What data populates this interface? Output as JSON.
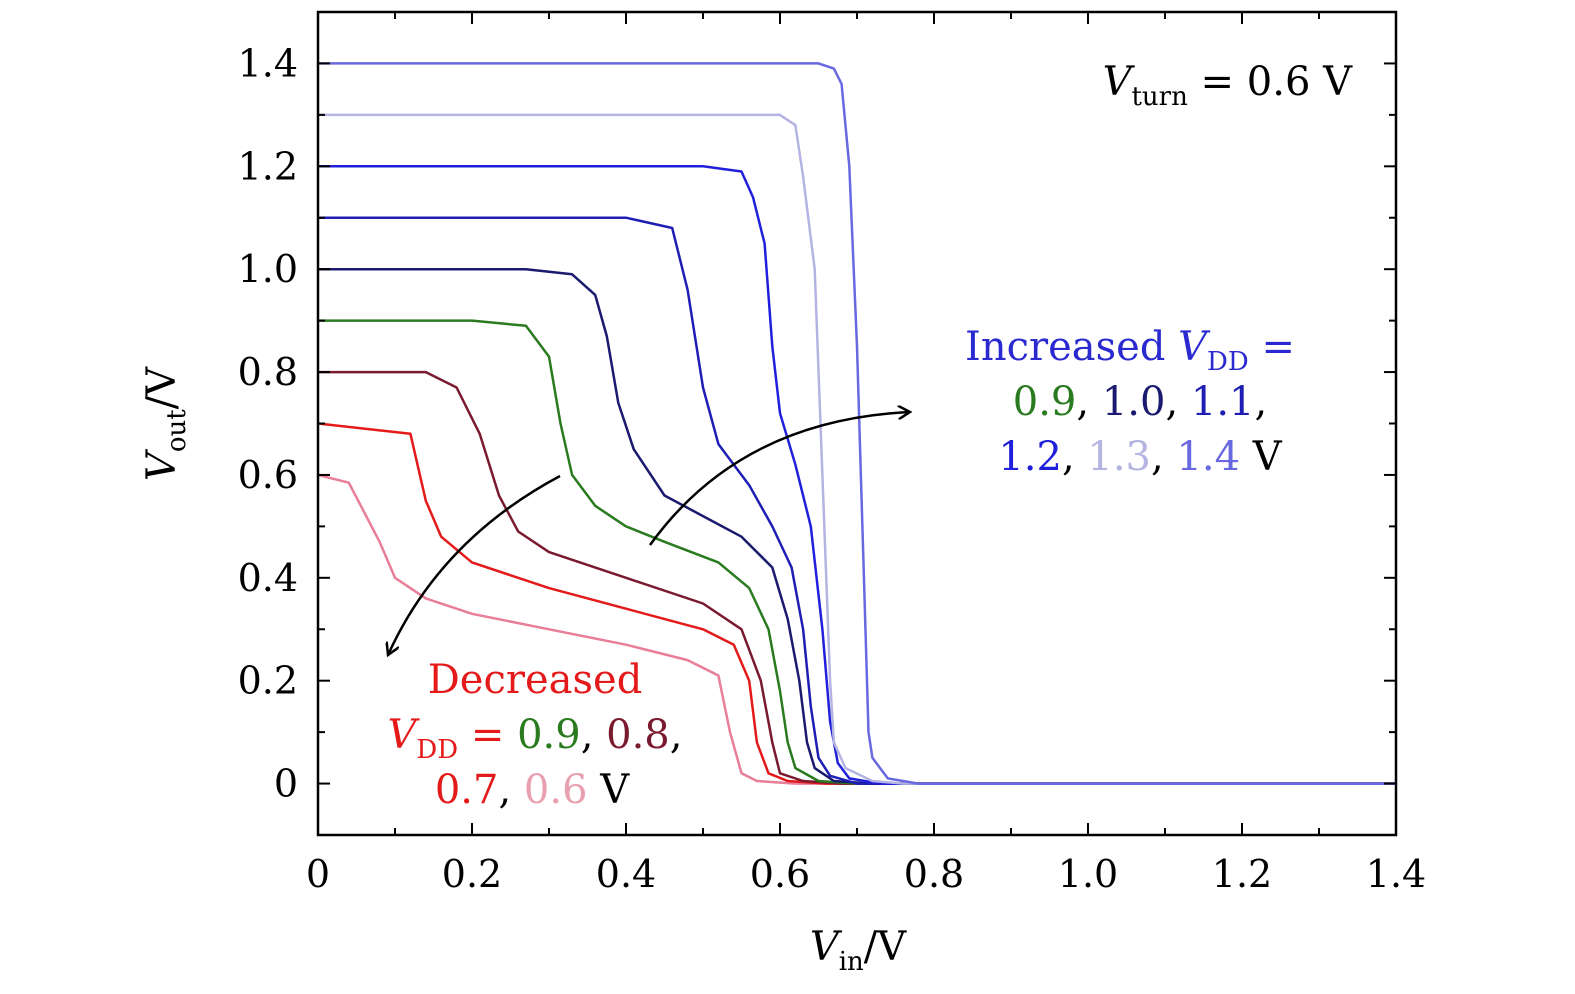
{
  "chart_data": {
    "type": "line",
    "xlim": [
      0,
      1.4
    ],
    "ylim": [
      -0.1,
      1.5
    ],
    "xticks": [
      "0",
      "0.2",
      "0.4",
      "0.6",
      "0.8",
      "1.0",
      "1.2",
      "1.4"
    ],
    "xtick_values": [
      0,
      0.2,
      0.4,
      0.6,
      0.8,
      1.0,
      1.2,
      1.4
    ],
    "yticks": [
      "0",
      "0.2",
      "0.4",
      "0.6",
      "0.8",
      "1.0",
      "1.2",
      "1.4"
    ],
    "ytick_values": [
      0,
      0.2,
      0.4,
      0.6,
      0.8,
      1.0,
      1.2,
      1.4
    ],
    "xlabel": {
      "var": "V",
      "sub": "in",
      "rest": "/V"
    },
    "ylabel": {
      "var": "V",
      "sub": "out",
      "rest": "/V"
    },
    "grid": false,
    "series": [
      {
        "color": "#e87e98",
        "points": [
          [
            0,
            0.6
          ],
          [
            0.04,
            0.585
          ],
          [
            0.08,
            0.47
          ],
          [
            0.1,
            0.4
          ],
          [
            0.14,
            0.36
          ],
          [
            0.2,
            0.33
          ],
          [
            0.3,
            0.3
          ],
          [
            0.4,
            0.27
          ],
          [
            0.48,
            0.24
          ],
          [
            0.52,
            0.21
          ],
          [
            0.535,
            0.1
          ],
          [
            0.55,
            0.02
          ],
          [
            0.57,
            0.005
          ],
          [
            0.62,
            0
          ],
          [
            1.4,
            0
          ]
        ]
      },
      {
        "color": "#e41a1a",
        "points": [
          [
            0,
            0.7
          ],
          [
            0.12,
            0.68
          ],
          [
            0.14,
            0.55
          ],
          [
            0.16,
            0.48
          ],
          [
            0.2,
            0.43
          ],
          [
            0.3,
            0.38
          ],
          [
            0.4,
            0.34
          ],
          [
            0.5,
            0.3
          ],
          [
            0.54,
            0.27
          ],
          [
            0.56,
            0.2
          ],
          [
            0.57,
            0.08
          ],
          [
            0.585,
            0.02
          ],
          [
            0.61,
            0.005
          ],
          [
            0.66,
            0
          ],
          [
            1.4,
            0
          ]
        ]
      },
      {
        "color": "#7a1a2e",
        "points": [
          [
            0,
            0.8
          ],
          [
            0.14,
            0.8
          ],
          [
            0.18,
            0.77
          ],
          [
            0.21,
            0.68
          ],
          [
            0.235,
            0.56
          ],
          [
            0.26,
            0.49
          ],
          [
            0.3,
            0.45
          ],
          [
            0.4,
            0.4
          ],
          [
            0.5,
            0.35
          ],
          [
            0.55,
            0.3
          ],
          [
            0.575,
            0.2
          ],
          [
            0.59,
            0.08
          ],
          [
            0.6,
            0.02
          ],
          [
            0.63,
            0.005
          ],
          [
            0.68,
            0
          ],
          [
            1.4,
            0
          ]
        ]
      },
      {
        "color": "#2a7a20",
        "points": [
          [
            0,
            0.9
          ],
          [
            0.2,
            0.9
          ],
          [
            0.27,
            0.89
          ],
          [
            0.3,
            0.83
          ],
          [
            0.315,
            0.7
          ],
          [
            0.33,
            0.6
          ],
          [
            0.36,
            0.54
          ],
          [
            0.4,
            0.5
          ],
          [
            0.45,
            0.47
          ],
          [
            0.52,
            0.43
          ],
          [
            0.56,
            0.38
          ],
          [
            0.585,
            0.3
          ],
          [
            0.6,
            0.18
          ],
          [
            0.61,
            0.08
          ],
          [
            0.62,
            0.03
          ],
          [
            0.65,
            0.005
          ],
          [
            0.7,
            0
          ],
          [
            1.4,
            0
          ]
        ]
      },
      {
        "color": "#1a1a6e",
        "points": [
          [
            0,
            1.0
          ],
          [
            0.27,
            1.0
          ],
          [
            0.33,
            0.99
          ],
          [
            0.36,
            0.95
          ],
          [
            0.375,
            0.87
          ],
          [
            0.39,
            0.74
          ],
          [
            0.41,
            0.65
          ],
          [
            0.45,
            0.56
          ],
          [
            0.5,
            0.52
          ],
          [
            0.55,
            0.48
          ],
          [
            0.59,
            0.42
          ],
          [
            0.61,
            0.32
          ],
          [
            0.625,
            0.2
          ],
          [
            0.635,
            0.08
          ],
          [
            0.645,
            0.03
          ],
          [
            0.67,
            0.005
          ],
          [
            0.72,
            0
          ],
          [
            1.4,
            0
          ]
        ]
      },
      {
        "color": "#1e1eb4",
        "points": [
          [
            0,
            1.1
          ],
          [
            0.3,
            1.1
          ],
          [
            0.4,
            1.1
          ],
          [
            0.46,
            1.08
          ],
          [
            0.48,
            0.96
          ],
          [
            0.5,
            0.77
          ],
          [
            0.52,
            0.66
          ],
          [
            0.56,
            0.58
          ],
          [
            0.59,
            0.5
          ],
          [
            0.615,
            0.42
          ],
          [
            0.63,
            0.3
          ],
          [
            0.64,
            0.15
          ],
          [
            0.65,
            0.05
          ],
          [
            0.665,
            0.015
          ],
          [
            0.7,
            0
          ],
          [
            1.4,
            0
          ]
        ]
      },
      {
        "color": "#2020dc",
        "points": [
          [
            0,
            1.2
          ],
          [
            0.4,
            1.2
          ],
          [
            0.5,
            1.2
          ],
          [
            0.55,
            1.19
          ],
          [
            0.565,
            1.14
          ],
          [
            0.58,
            1.05
          ],
          [
            0.59,
            0.85
          ],
          [
            0.6,
            0.72
          ],
          [
            0.62,
            0.62
          ],
          [
            0.64,
            0.5
          ],
          [
            0.655,
            0.3
          ],
          [
            0.665,
            0.12
          ],
          [
            0.675,
            0.04
          ],
          [
            0.69,
            0.01
          ],
          [
            0.73,
            0
          ],
          [
            1.4,
            0
          ]
        ]
      },
      {
        "color": "#b4b4e2",
        "points": [
          [
            0,
            1.3
          ],
          [
            0.5,
            1.3
          ],
          [
            0.6,
            1.3
          ],
          [
            0.62,
            1.28
          ],
          [
            0.63,
            1.18
          ],
          [
            0.645,
            1.0
          ],
          [
            0.655,
            0.6
          ],
          [
            0.665,
            0.2
          ],
          [
            0.67,
            0.08
          ],
          [
            0.685,
            0.03
          ],
          [
            0.72,
            0.005
          ],
          [
            0.76,
            0
          ],
          [
            1.4,
            0
          ]
        ]
      },
      {
        "color": "#6868e0",
        "points": [
          [
            0,
            1.4
          ],
          [
            0.55,
            1.4
          ],
          [
            0.65,
            1.4
          ],
          [
            0.67,
            1.39
          ],
          [
            0.68,
            1.36
          ],
          [
            0.69,
            1.2
          ],
          [
            0.7,
            0.85
          ],
          [
            0.71,
            0.35
          ],
          [
            0.715,
            0.1
          ],
          [
            0.72,
            0.05
          ],
          [
            0.74,
            0.01
          ],
          [
            0.78,
            0
          ],
          [
            1.4,
            0
          ]
        ]
      }
    ],
    "annotations": {
      "vturn": {
        "var": "V",
        "sub": "turn",
        "rest": " = 0.6 V"
      },
      "increased": {
        "line1": {
          "text": "Increased ",
          "var": "V",
          "sub": "DD",
          "rest": " =",
          "color": "#2a2ad0"
        },
        "line2": [
          {
            "text": "0.9",
            "color": "#2a7a20"
          },
          {
            "text": ", ",
            "color": "#000000"
          },
          {
            "text": "1.0",
            "color": "#1a1a6e"
          },
          {
            "text": ", ",
            "color": "#000000"
          },
          {
            "text": "1.1",
            "color": "#1e1eb4"
          },
          {
            "text": ",",
            "color": "#000000"
          }
        ],
        "line3": [
          {
            "text": "1.2",
            "color": "#2020dc"
          },
          {
            "text": ", ",
            "color": "#000000"
          },
          {
            "text": "1.3",
            "color": "#b4b4e2"
          },
          {
            "text": ", ",
            "color": "#000000"
          },
          {
            "text": "1.4",
            "color": "#6868e0"
          },
          {
            "text": " V",
            "color": "#000000"
          }
        ]
      },
      "decreased": {
        "line1": {
          "text": "Decreased",
          "color": "#e41a1a"
        },
        "line2": {
          "var": "V",
          "sub": "DD",
          "rest": " = ",
          "color": "#e41a1a",
          "values": [
            {
              "text": "0.9",
              "color": "#2a7a20"
            },
            {
              "text": ", ",
              "color": "#000000"
            },
            {
              "text": "0.8",
              "color": "#7a1a2e"
            },
            {
              "text": ",",
              "color": "#000000"
            }
          ]
        },
        "line3": [
          {
            "text": "0.7",
            "color": "#e41a1a"
          },
          {
            "text": ", ",
            "color": "#000000"
          },
          {
            "text": "0.6",
            "color": "#e8a0b0"
          },
          {
            "text": " V",
            "color": "#000000"
          }
        ]
      }
    }
  }
}
